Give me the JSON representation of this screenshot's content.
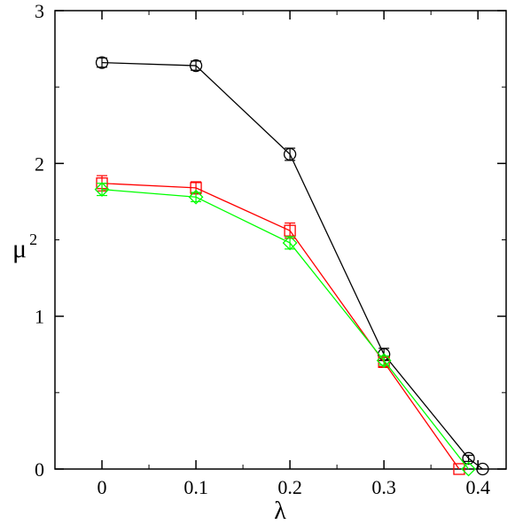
{
  "chart_data": {
    "type": "line",
    "xlabel": "λ",
    "ylabel": "μ",
    "ylabel_superscript": "2",
    "xlim": [
      -0.05,
      0.43
    ],
    "ylim": [
      0,
      3
    ],
    "x_ticks": [
      0,
      0.1,
      0.2,
      0.3,
      0.4
    ],
    "x_tick_labels": [
      "0",
      "0.1",
      "0.2",
      "0.3",
      "0.4"
    ],
    "y_ticks": [
      0,
      1,
      2,
      3
    ],
    "y_tick_labels": [
      "0",
      "1",
      "2",
      "3"
    ],
    "grid": false,
    "series": [
      {
        "color": "#000000",
        "marker": "circle",
        "x": [
          0,
          0.1,
          0.2,
          0.3,
          0.39,
          0.405
        ],
        "y": [
          2.66,
          2.64,
          2.06,
          0.75,
          0.07,
          0.0
        ],
        "err": [
          0.03,
          0.03,
          0.04,
          0.04,
          0.02,
          0.0
        ]
      },
      {
        "color": "#ff0000",
        "marker": "square",
        "x": [
          0,
          0.1,
          0.2,
          0.3,
          0.38
        ],
        "y": [
          1.87,
          1.84,
          1.56,
          0.7,
          0.0
        ],
        "err": [
          0.05,
          0.04,
          0.05,
          0.03,
          0.0
        ]
      },
      {
        "color": "#00ff00",
        "marker": "diamond",
        "x": [
          0,
          0.1,
          0.2,
          0.3,
          0.39
        ],
        "y": [
          1.83,
          1.78,
          1.48,
          0.71,
          0.0
        ],
        "err": [
          0.04,
          0.03,
          0.04,
          0.03,
          0.0
        ]
      }
    ]
  }
}
